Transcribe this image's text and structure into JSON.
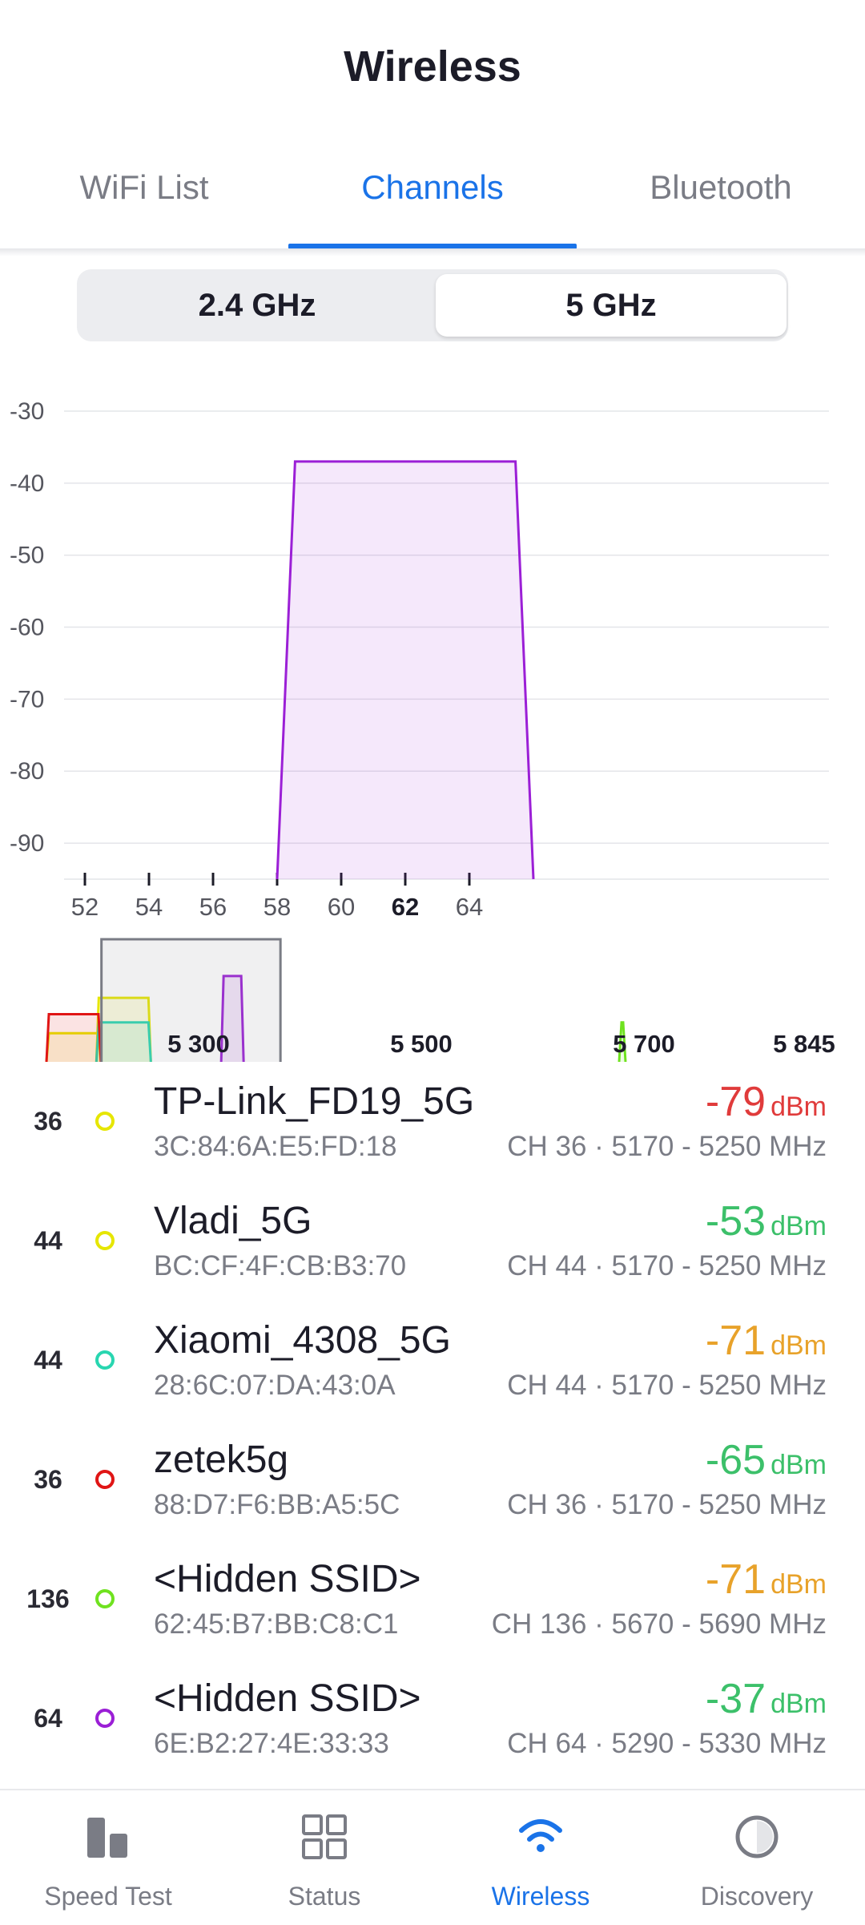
{
  "header": {
    "title": "Wireless"
  },
  "tabs": [
    {
      "label": "WiFi List",
      "active": false
    },
    {
      "label": "Channels",
      "active": true
    },
    {
      "label": "Bluetooth",
      "active": false
    }
  ],
  "band_toggle": {
    "options": [
      "2.4 GHz",
      "5 GHz"
    ],
    "selected": "5 GHz"
  },
  "chart_data": {
    "type": "area",
    "y_ticks": [
      "-30",
      "-40",
      "-50",
      "-60",
      "-70",
      "-80",
      "-90"
    ],
    "ylim": [
      -95,
      -30
    ],
    "x_ticks": [
      "52",
      "54",
      "56",
      "58",
      "60",
      "62",
      "64"
    ],
    "highlighted_tick": "62",
    "xlim": [
      52,
      68
    ],
    "grid": true,
    "series": [
      {
        "channel": 62,
        "from_channel": 58,
        "to_channel": 66,
        "signal_dbm": -37,
        "color": "#9b1fd6"
      }
    ]
  },
  "overview": {
    "freq_labels": [
      "5 300",
      "5 500",
      "5 700",
      "5 845"
    ],
    "view_window_channels": [
      52,
      64
    ]
  },
  "networks": [
    {
      "channel": "36",
      "ssid": "TP-Link_FD19_5G",
      "mac": "3C:84:6A:E5:FD:18",
      "signal": "-79",
      "unit": "dBm",
      "info": "CH 36 · 5170 - 5250 MHz",
      "dot_color": "#e6e600",
      "signal_color": "#e03b3b"
    },
    {
      "channel": "44",
      "ssid": "Vladi_5G",
      "mac": "BC:CF:4F:CB:B3:70",
      "signal": "-53",
      "unit": "dBm",
      "info": "CH 44 · 5170 - 5250 MHz",
      "dot_color": "#e6e600",
      "signal_color": "#3cc06a"
    },
    {
      "channel": "44",
      "ssid": "Xiaomi_4308_5G",
      "mac": "28:6C:07:DA:43:0A",
      "signal": "-71",
      "unit": "dBm",
      "info": "CH 44 · 5170 - 5250 MHz",
      "dot_color": "#28d6b0",
      "signal_color": "#e8a22a"
    },
    {
      "channel": "36",
      "ssid": "zetek5g",
      "mac": "88:D7:F6:BB:A5:5C",
      "signal": "-65",
      "unit": "dBm",
      "info": "CH 36 · 5170 - 5250 MHz",
      "dot_color": "#e01515",
      "signal_color": "#3cc06a"
    },
    {
      "channel": "136",
      "ssid": "<Hidden SSID>",
      "mac": "62:45:B7:BB:C8:C1",
      "signal": "-71",
      "unit": "dBm",
      "info": "CH 136 · 5670 - 5690 MHz",
      "dot_color": "#6fe21f",
      "signal_color": "#e8a22a"
    },
    {
      "channel": "64",
      "ssid": "<Hidden SSID>",
      "mac": "6E:B2:27:4E:33:33",
      "signal": "-37",
      "unit": "dBm",
      "info": "CH 64 · 5290 - 5330 MHz",
      "dot_color": "#9b1fd6",
      "signal_color": "#3cc06a"
    }
  ],
  "bottom_nav": [
    {
      "label": "Speed Test",
      "icon": "speed-test-icon",
      "active": false
    },
    {
      "label": "Status",
      "icon": "status-grid-icon",
      "active": false
    },
    {
      "label": "Wireless",
      "icon": "wifi-icon",
      "active": true
    },
    {
      "label": "Discovery",
      "icon": "discovery-icon",
      "active": false
    }
  ],
  "colors": {
    "accent": "#1a73e8",
    "nav_inactive": "#7a7c85"
  }
}
